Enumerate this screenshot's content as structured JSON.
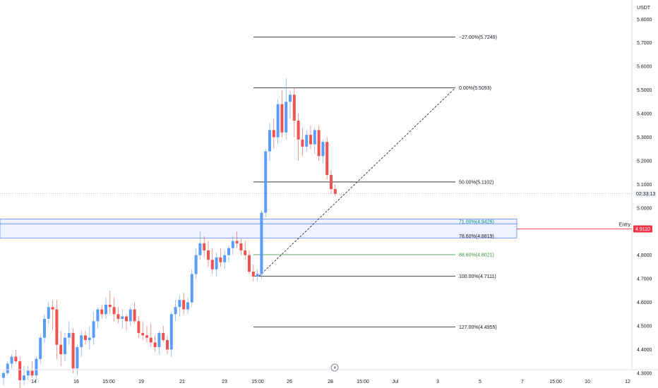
{
  "chart_data": {
    "type": "candlestick",
    "currency": "USDT",
    "ylim": [
      4.25,
      5.88
    ],
    "y_ticks": [
      "5.8000",
      "5.7000",
      "5.6000",
      "5.5000",
      "5.4000",
      "5.3000",
      "5.2000",
      "5.1000",
      "5.0000",
      "4.8000",
      "4.7000",
      "4.6000",
      "4.5000",
      "4.4000",
      "4.3000"
    ],
    "x_ticks": [
      "14",
      "16",
      "15:00",
      "19",
      "21",
      "23",
      "15:00",
      "26",
      "28",
      "15:00",
      "Jul",
      "3",
      "5",
      "7",
      "15:00",
      "10",
      "12"
    ],
    "countdown": "02:33:13",
    "entry_label": "Entry",
    "entry_price": "4.9110",
    "colors": {
      "up": "#5b9cf6",
      "down": "#ef5350",
      "entry": "#f23645",
      "zone": "#2962ff",
      "fib_green": "#388e3c",
      "fib_teal": "#00897b",
      "fib_black": "#131722"
    },
    "fib_levels": [
      {
        "label": "−27.00%(5.7249)",
        "price": 5.7249,
        "color": "black"
      },
      {
        "label": "0.00%(5.5093)",
        "price": 5.5093,
        "color": "black"
      },
      {
        "label": "50.00%(5.1102)",
        "price": 5.1102,
        "color": "black"
      },
      {
        "label": "71.00%(4.9426)",
        "price": 4.9426,
        "color": "teal"
      },
      {
        "label": "78.60%(4.8819)",
        "price": 4.8819,
        "color": "black"
      },
      {
        "label": "88.60%(4.8021)",
        "price": 4.8021,
        "color": "green"
      },
      {
        "label": "100.00%(4.7111)",
        "price": 4.7111,
        "color": "black"
      },
      {
        "label": "127.00%(4.4955)",
        "price": 4.4955,
        "color": "black"
      }
    ],
    "candles": [
      [
        4.28,
        4.31,
        4.25,
        4.3
      ],
      [
        4.3,
        4.35,
        4.29,
        4.34
      ],
      [
        4.34,
        4.38,
        4.32,
        4.37
      ],
      [
        4.37,
        4.4,
        4.34,
        4.35
      ],
      [
        4.35,
        4.37,
        4.22,
        4.27
      ],
      [
        4.27,
        4.33,
        4.25,
        4.29
      ],
      [
        4.29,
        4.33,
        4.27,
        4.31
      ],
      [
        4.31,
        4.35,
        4.28,
        4.29
      ],
      [
        4.29,
        4.37,
        4.27,
        4.36
      ],
      [
        4.36,
        4.46,
        4.34,
        4.45
      ],
      [
        4.45,
        4.55,
        4.43,
        4.53
      ],
      [
        4.53,
        4.6,
        4.51,
        4.58
      ],
      [
        4.58,
        4.61,
        4.48,
        4.57
      ],
      [
        4.57,
        4.61,
        4.36,
        4.42
      ],
      [
        4.42,
        4.48,
        4.33,
        4.38
      ],
      [
        4.38,
        4.47,
        4.35,
        4.45
      ],
      [
        4.45,
        4.52,
        4.42,
        4.47
      ],
      [
        4.47,
        4.49,
        4.3,
        4.32
      ],
      [
        4.32,
        4.42,
        4.29,
        4.41
      ],
      [
        4.41,
        4.48,
        4.37,
        4.46
      ],
      [
        4.46,
        4.48,
        4.42,
        4.44
      ],
      [
        4.44,
        4.5,
        4.4,
        4.45
      ],
      [
        4.45,
        4.56,
        4.42,
        4.52
      ],
      [
        4.52,
        4.58,
        4.49,
        4.57
      ],
      [
        4.57,
        4.59,
        4.53,
        4.55
      ],
      [
        4.55,
        4.62,
        4.53,
        4.59
      ],
      [
        4.59,
        4.65,
        4.55,
        4.58
      ],
      [
        4.58,
        4.62,
        4.52,
        4.55
      ],
      [
        4.55,
        4.58,
        4.51,
        4.53
      ],
      [
        4.53,
        4.57,
        4.49,
        4.54
      ],
      [
        4.54,
        4.55,
        4.48,
        4.52
      ],
      [
        4.52,
        4.58,
        4.5,
        4.57
      ],
      [
        4.57,
        4.6,
        4.51,
        4.52
      ],
      [
        4.52,
        4.54,
        4.45,
        4.47
      ],
      [
        4.47,
        4.52,
        4.44,
        4.46
      ],
      [
        4.46,
        4.5,
        4.43,
        4.45
      ],
      [
        4.45,
        4.51,
        4.41,
        4.43
      ],
      [
        4.43,
        4.46,
        4.39,
        4.41
      ],
      [
        4.41,
        4.48,
        4.38,
        4.47
      ],
      [
        4.47,
        4.5,
        4.43,
        4.44
      ],
      [
        4.44,
        4.46,
        4.38,
        4.4
      ],
      [
        4.4,
        4.56,
        4.37,
        4.55
      ],
      [
        4.55,
        4.61,
        4.52,
        4.58
      ],
      [
        4.58,
        4.63,
        4.54,
        4.61
      ],
      [
        4.61,
        4.64,
        4.55,
        4.57
      ],
      [
        4.57,
        4.62,
        4.55,
        4.6
      ],
      [
        4.6,
        4.74,
        4.58,
        4.72
      ],
      [
        4.72,
        4.83,
        4.7,
        4.8
      ],
      [
        4.8,
        4.9,
        4.78,
        4.85
      ],
      [
        4.85,
        4.88,
        4.79,
        4.82
      ],
      [
        4.82,
        4.86,
        4.75,
        4.78
      ],
      [
        4.78,
        4.83,
        4.72,
        4.74
      ],
      [
        4.74,
        4.81,
        4.71,
        4.79
      ],
      [
        4.79,
        4.83,
        4.75,
        4.77
      ],
      [
        4.77,
        4.82,
        4.74,
        4.8
      ],
      [
        4.8,
        4.84,
        4.77,
        4.83
      ],
      [
        4.83,
        4.88,
        4.8,
        4.86
      ],
      [
        4.86,
        4.9,
        4.83,
        4.85
      ],
      [
        4.85,
        4.87,
        4.8,
        4.82
      ],
      [
        4.82,
        4.86,
        4.78,
        4.8
      ],
      [
        4.8,
        4.82,
        4.72,
        4.73
      ],
      [
        4.73,
        4.76,
        4.69,
        4.71
      ],
      [
        4.71,
        4.74,
        4.69,
        4.72
      ],
      [
        4.72,
        4.99,
        4.7,
        4.98
      ],
      [
        4.98,
        5.25,
        4.96,
        5.24
      ],
      [
        5.24,
        5.36,
        5.2,
        5.33
      ],
      [
        5.33,
        5.38,
        5.25,
        5.3
      ],
      [
        5.3,
        5.46,
        5.27,
        5.44
      ],
      [
        5.44,
        5.5,
        5.3,
        5.32
      ],
      [
        5.32,
        5.55,
        5.29,
        5.45
      ],
      [
        5.45,
        5.5,
        5.38,
        5.48
      ],
      [
        5.48,
        5.51,
        5.3,
        5.37
      ],
      [
        5.37,
        5.4,
        5.2,
        5.29
      ],
      [
        5.29,
        5.34,
        5.22,
        5.26
      ],
      [
        5.26,
        5.33,
        5.24,
        5.31
      ],
      [
        5.31,
        5.35,
        5.25,
        5.27
      ],
      [
        5.27,
        5.34,
        5.23,
        5.33
      ],
      [
        5.33,
        5.35,
        5.2,
        5.22
      ],
      [
        5.22,
        5.29,
        5.19,
        5.28
      ],
      [
        5.28,
        5.3,
        5.12,
        5.14
      ],
      [
        5.14,
        5.16,
        5.06,
        5.08
      ],
      [
        5.08,
        5.1,
        5.05,
        5.06
      ]
    ]
  }
}
